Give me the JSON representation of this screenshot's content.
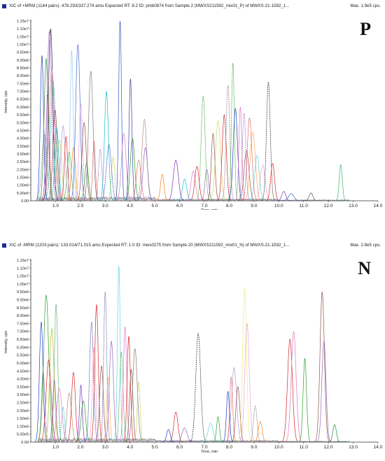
{
  "chart_data": [
    {
      "type": "line",
      "panel_label": "P",
      "header_title": "XIC of +MRM (1144 pairs): 478.293/337.274 amu Expected RT: 8.2 ID: pmb0874 from Sample 2 (MWXS211592_mix01_P) of MWXS-21-1592_1...",
      "header_max": "Max. 1.9e5 cps.",
      "xlabel": "Time, min",
      "ylabel": "Intensity, cps",
      "xlim": [
        0.0,
        14.0
      ],
      "ylim": [
        0,
        11500000
      ],
      "x_ticks": [
        "1.0",
        "2.0",
        "3.0",
        "4.0",
        "5.0",
        "6.0",
        "7.0",
        "8.0",
        "9.0",
        "10.0",
        "11.0",
        "12.0",
        "13.0",
        "14.0"
      ],
      "y_ticks": [
        "0.00",
        "5.00e5",
        "1.00e6",
        "1.50e6",
        "2.00e6",
        "2.50e6",
        "3.00e6",
        "3.50e6",
        "4.00e6",
        "4.50e6",
        "5.00e6",
        "5.50e6",
        "6.00e6",
        "6.50e6",
        "7.00e6",
        "7.50e6",
        "8.00e6",
        "8.50e6",
        "9.00e6",
        "9.50e6",
        "1.00e7",
        "1.05e7",
        "1.10e7",
        "1.15e7"
      ],
      "peaks": [
        {
          "rt": 0.45,
          "h": 9300000,
          "color": "#1f3fbf"
        },
        {
          "rt": 0.55,
          "h": 4200000,
          "color": "#7a7a7a"
        },
        {
          "rt": 0.62,
          "h": 9100000,
          "color": "#2e8b57"
        },
        {
          "rt": 0.68,
          "h": 6800000,
          "color": "#c8102e"
        },
        {
          "rt": 0.75,
          "h": 10900000,
          "color": "#7b2fbf"
        },
        {
          "rt": 0.8,
          "h": 11000000,
          "color": "#2a2a2a"
        },
        {
          "rt": 0.85,
          "h": 8500000,
          "color": "#e377c2"
        },
        {
          "rt": 0.9,
          "h": 7600000,
          "color": "#1fa187"
        },
        {
          "rt": 0.98,
          "h": 5800000,
          "color": "#8c564b"
        },
        {
          "rt": 1.05,
          "h": 4700000,
          "color": "#17becf"
        },
        {
          "rt": 1.15,
          "h": 3900000,
          "color": "#bcbd22"
        },
        {
          "rt": 1.3,
          "h": 4800000,
          "color": "#9467bd"
        },
        {
          "rt": 1.42,
          "h": 4100000,
          "color": "#d62728"
        },
        {
          "rt": 1.55,
          "h": 3100000,
          "color": "#2ca02c"
        },
        {
          "rt": 1.65,
          "h": 9600000,
          "color": "#5fb7e5"
        },
        {
          "rt": 1.72,
          "h": 3400000,
          "color": "#ff7f0e"
        },
        {
          "rt": 1.9,
          "h": 10000000,
          "color": "#4a6cd4"
        },
        {
          "rt": 2.02,
          "h": 6200000,
          "color": "#e377c2"
        },
        {
          "rt": 2.15,
          "h": 5000000,
          "color": "#8c564b"
        },
        {
          "rt": 2.25,
          "h": 2400000,
          "color": "#2ca02c"
        },
        {
          "rt": 2.42,
          "h": 8300000,
          "color": "#7f7f7f"
        },
        {
          "rt": 2.55,
          "h": 3800000,
          "color": "#d62728"
        },
        {
          "rt": 2.8,
          "h": 3300000,
          "color": "#9467bd"
        },
        {
          "rt": 3.05,
          "h": 7000000,
          "color": "#17becf"
        },
        {
          "rt": 3.15,
          "h": 3600000,
          "color": "#1f3fbf"
        },
        {
          "rt": 3.32,
          "h": 2800000,
          "color": "#bcbd22"
        },
        {
          "rt": 3.6,
          "h": 11500000,
          "color": "#2a5cc4"
        },
        {
          "rt": 3.75,
          "h": 4300000,
          "color": "#e377c2"
        },
        {
          "rt": 4.02,
          "h": 7800000,
          "color": "#3a3a9a"
        },
        {
          "rt": 4.1,
          "h": 4000000,
          "color": "#2ca02c"
        },
        {
          "rt": 4.35,
          "h": 2600000,
          "color": "#d62728"
        },
        {
          "rt": 4.58,
          "h": 5200000,
          "color": "#8c564b"
        },
        {
          "rt": 4.62,
          "h": 3400000,
          "color": "#9467bd"
        },
        {
          "rt": 5.3,
          "h": 1700000,
          "color": "#ff7f0e"
        },
        {
          "rt": 5.85,
          "h": 2600000,
          "color": "#7b2fbf"
        },
        {
          "rt": 6.2,
          "h": 1400000,
          "color": "#17becf"
        },
        {
          "rt": 6.55,
          "h": 1900000,
          "color": "#e377c2"
        },
        {
          "rt": 6.7,
          "h": 2200000,
          "color": "#d62728"
        },
        {
          "rt": 6.95,
          "h": 6700000,
          "color": "#2ca02c"
        },
        {
          "rt": 7.1,
          "h": 2000000,
          "color": "#9467bd"
        },
        {
          "rt": 7.35,
          "h": 4300000,
          "color": "#8c564b"
        },
        {
          "rt": 7.55,
          "h": 5100000,
          "color": "#bcbd22"
        },
        {
          "rt": 7.8,
          "h": 5500000,
          "color": "#d62728"
        },
        {
          "rt": 7.95,
          "h": 7400000,
          "color": "#7f7f7f"
        },
        {
          "rt": 8.15,
          "h": 8800000,
          "color": "#2ca02c"
        },
        {
          "rt": 8.25,
          "h": 5900000,
          "color": "#1f3fbf"
        },
        {
          "rt": 8.45,
          "h": 6000000,
          "color": "#e377c2"
        },
        {
          "rt": 8.6,
          "h": 5600000,
          "color": "#9467bd"
        },
        {
          "rt": 8.7,
          "h": 3200000,
          "color": "#8c564b"
        },
        {
          "rt": 8.82,
          "h": 5300000,
          "color": "#d62728"
        },
        {
          "rt": 8.95,
          "h": 4400000,
          "color": "#ff7f0e"
        },
        {
          "rt": 9.12,
          "h": 2900000,
          "color": "#17becf"
        },
        {
          "rt": 9.35,
          "h": 2300000,
          "color": "#e377c2"
        },
        {
          "rt": 9.58,
          "h": 7600000,
          "color": "#2a2a2a"
        },
        {
          "rt": 9.75,
          "h": 2400000,
          "color": "#d62728"
        },
        {
          "rt": 10.2,
          "h": 600000,
          "color": "#7b2fbf"
        },
        {
          "rt": 10.5,
          "h": 450000,
          "color": "#2a5cc4"
        },
        {
          "rt": 11.3,
          "h": 500000,
          "color": "#555555"
        },
        {
          "rt": 12.5,
          "h": 2300000,
          "color": "#3cb371"
        }
      ]
    },
    {
      "type": "line",
      "panel_label": "N",
      "header_title": "XIC of -MRM (1203 pairs): 133.014/71.015 amu Expected RT: 1.0 ID: mws0275 from Sample 20 (MWXS211592_mix01_N) of MWXS-21-1592_1...",
      "header_max": "Max. 2.8e5 cps.",
      "xlabel": "Time, min",
      "ylabel": "Intensity, cps",
      "xlim": [
        0.0,
        14.0
      ],
      "ylim": [
        0,
        11500000
      ],
      "x_ticks": [
        "1.0",
        "2.0",
        "3.0",
        "4.0",
        "5.0",
        "6.0",
        "7.0",
        "8.0",
        "9.0",
        "10.0",
        "11.0",
        "12.0",
        "13.0",
        "14.0"
      ],
      "y_ticks": [
        "0.00",
        "5.00e5",
        "1.00e6",
        "1.50e6",
        "2.00e6",
        "2.50e6",
        "3.00e6",
        "3.50e6",
        "4.00e6",
        "4.50e6",
        "5.00e6",
        "5.50e6",
        "6.00e6",
        "6.50e6",
        "7.00e6",
        "7.50e6",
        "8.00e6",
        "8.50e6",
        "9.00e6",
        "9.50e6",
        "1.00e7",
        "1.05e7",
        "1.10e7",
        "1.15e7"
      ],
      "peaks": [
        {
          "rt": 0.42,
          "h": 7600000,
          "color": "#1f3fbf"
        },
        {
          "rt": 0.5,
          "h": 4500000,
          "color": "#7a7a7a"
        },
        {
          "rt": 0.62,
          "h": 9300000,
          "color": "#2ca02c"
        },
        {
          "rt": 0.72,
          "h": 5200000,
          "color": "#d62728"
        },
        {
          "rt": 0.85,
          "h": 7200000,
          "color": "#bcbd22"
        },
        {
          "rt": 0.95,
          "h": 3900000,
          "color": "#9467bd"
        },
        {
          "rt": 1.02,
          "h": 8700000,
          "color": "#1f8f3f"
        },
        {
          "rt": 1.15,
          "h": 3400000,
          "color": "#e377c2"
        },
        {
          "rt": 1.3,
          "h": 2200000,
          "color": "#17becf"
        },
        {
          "rt": 1.55,
          "h": 3100000,
          "color": "#8c564b"
        },
        {
          "rt": 1.72,
          "h": 4400000,
          "color": "#d62728"
        },
        {
          "rt": 2.02,
          "h": 3600000,
          "color": "#7b2fbf"
        },
        {
          "rt": 2.12,
          "h": 2600000,
          "color": "#2ca02c"
        },
        {
          "rt": 2.45,
          "h": 7600000,
          "color": "#3a3a9a"
        },
        {
          "rt": 2.55,
          "h": 6000000,
          "color": "#e377c2"
        },
        {
          "rt": 2.65,
          "h": 8700000,
          "color": "#d62728"
        },
        {
          "rt": 2.85,
          "h": 4800000,
          "color": "#8c564b"
        },
        {
          "rt": 3.0,
          "h": 9500000,
          "color": "#5a5a9a"
        },
        {
          "rt": 3.12,
          "h": 4100000,
          "color": "#ff7f0e"
        },
        {
          "rt": 3.25,
          "h": 6400000,
          "color": "#9467bd"
        },
        {
          "rt": 3.55,
          "h": 11100000,
          "color": "#17becf"
        },
        {
          "rt": 3.65,
          "h": 5700000,
          "color": "#2ca02c"
        },
        {
          "rt": 3.8,
          "h": 7300000,
          "color": "#e377c2"
        },
        {
          "rt": 3.95,
          "h": 6700000,
          "color": "#d62728"
        },
        {
          "rt": 4.05,
          "h": 4600000,
          "color": "#8c564b"
        },
        {
          "rt": 4.2,
          "h": 5900000,
          "color": "#7f7f7f"
        },
        {
          "rt": 4.35,
          "h": 3800000,
          "color": "#bcbd22"
        },
        {
          "rt": 5.55,
          "h": 800000,
          "color": "#1f3fbf"
        },
        {
          "rt": 5.85,
          "h": 1900000,
          "color": "#d62728"
        },
        {
          "rt": 6.2,
          "h": 900000,
          "color": "#9467bd"
        },
        {
          "rt": 6.75,
          "h": 6900000,
          "color": "#2a2a2a"
        },
        {
          "rt": 7.25,
          "h": 1200000,
          "color": "#17becf"
        },
        {
          "rt": 7.55,
          "h": 1600000,
          "color": "#2ca02c"
        },
        {
          "rt": 7.95,
          "h": 3200000,
          "color": "#1f3fbf"
        },
        {
          "rt": 8.08,
          "h": 4100000,
          "color": "#d62728"
        },
        {
          "rt": 8.2,
          "h": 4700000,
          "color": "#9467bd"
        },
        {
          "rt": 8.35,
          "h": 3500000,
          "color": "#8c564b"
        },
        {
          "rt": 8.62,
          "h": 9700000,
          "color": "#e6e040"
        },
        {
          "rt": 8.72,
          "h": 7500000,
          "color": "#e377c2"
        },
        {
          "rt": 9.05,
          "h": 2300000,
          "color": "#7f7f7f"
        },
        {
          "rt": 9.25,
          "h": 1300000,
          "color": "#ff7f0e"
        },
        {
          "rt": 10.45,
          "h": 6500000,
          "color": "#d62728"
        },
        {
          "rt": 10.6,
          "h": 7000000,
          "color": "#e377c2"
        },
        {
          "rt": 11.05,
          "h": 5300000,
          "color": "#2ca02c"
        },
        {
          "rt": 11.75,
          "h": 9500000,
          "color": "#8c564b"
        },
        {
          "rt": 11.82,
          "h": 6400000,
          "color": "#9467bd"
        },
        {
          "rt": 12.25,
          "h": 1100000,
          "color": "#1f8f3f"
        }
      ]
    }
  ]
}
